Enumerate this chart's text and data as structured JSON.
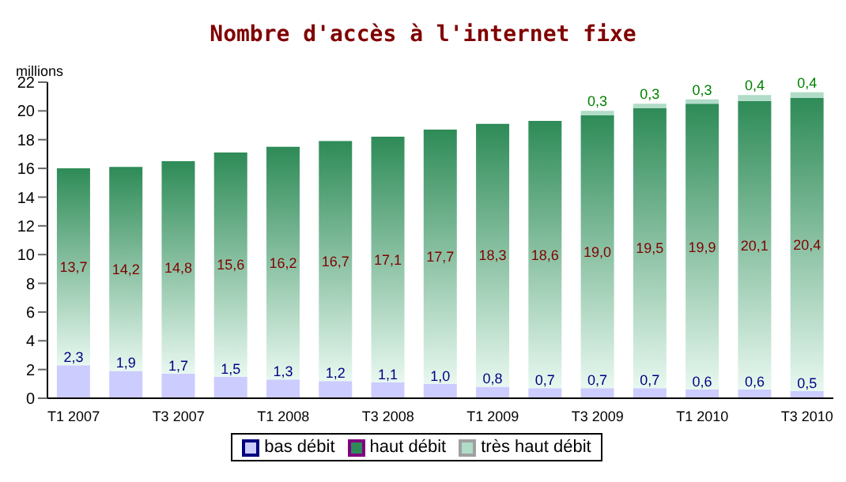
{
  "chart_data": {
    "type": "bar",
    "title": "Nombre d'accès à l'internet fixe",
    "ylabel": "millions",
    "categories": [
      "T1 2007",
      null,
      "T3 2007",
      null,
      "T1 2008",
      null,
      "T3 2008",
      null,
      "T1 2009",
      null,
      "T3 2009",
      null,
      "T1 2010",
      null,
      "T3 2010"
    ],
    "stacked": true,
    "series": [
      {
        "name": "bas débit",
        "color": "#ccccff",
        "values": [
          2.3,
          1.9,
          1.7,
          1.5,
          1.3,
          1.2,
          1.1,
          1.0,
          0.8,
          0.7,
          0.7,
          0.7,
          0.6,
          0.6,
          0.5
        ],
        "value_labels": [
          "2,3",
          "1,9",
          "1,7",
          "1,5",
          "1,3",
          "1,2",
          "1,1",
          "1,0",
          "0,8",
          "0,7",
          "0,7",
          "0,7",
          "0,6",
          "0,6",
          "0,5"
        ]
      },
      {
        "name": "haut débit",
        "color": "#2e8b57",
        "values": [
          13.7,
          14.2,
          14.8,
          15.6,
          16.2,
          16.7,
          17.1,
          17.7,
          18.3,
          18.6,
          19.0,
          19.5,
          19.9,
          20.1,
          20.4
        ],
        "value_labels": [
          "13,7",
          "14,2",
          "14,8",
          "15,6",
          "16,2",
          "16,7",
          "17,1",
          "17,7",
          "18,3",
          "18,6",
          "19,0",
          "19,5",
          "19,9",
          "20,1",
          "20,4"
        ]
      },
      {
        "name": "très haut débit",
        "color": "#b0dcc8",
        "values": [
          null,
          null,
          null,
          null,
          null,
          null,
          null,
          null,
          null,
          null,
          0.3,
          0.3,
          0.3,
          0.4,
          0.4
        ],
        "value_labels": [
          null,
          null,
          null,
          null,
          null,
          null,
          null,
          null,
          null,
          null,
          "0,3",
          "0,3",
          "0,3",
          "0,4",
          "0,4"
        ]
      }
    ],
    "ylim": [
      0,
      22
    ],
    "yticks": [
      0,
      2,
      4,
      6,
      8,
      10,
      12,
      14,
      16,
      18,
      20,
      22
    ],
    "grid": false,
    "legend": "bottom"
  }
}
